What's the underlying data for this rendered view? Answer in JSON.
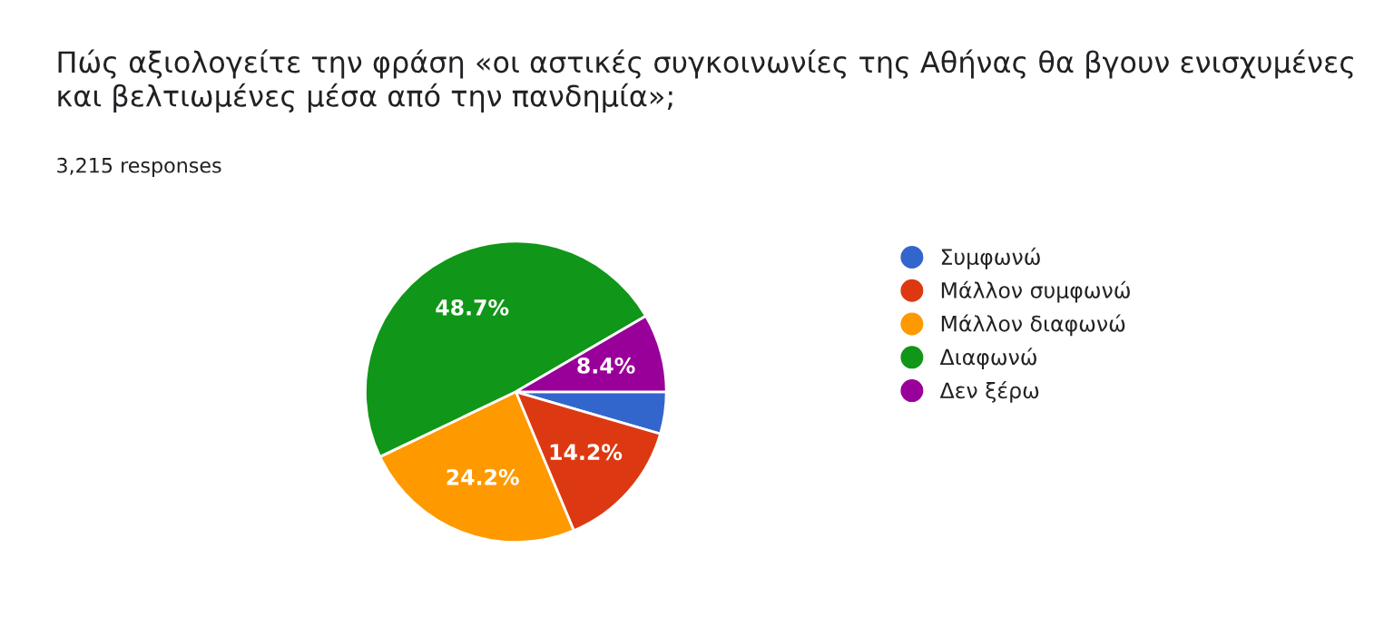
{
  "chart_data": {
    "type": "pie",
    "title": "Πώς αξιολογείτε την φράση «οι αστικές συγκοινωνίες της Αθήνας θα βγουν ενισχυμένες και βελτιωμένες μέσα από την πανδημία»;",
    "subtitle": "3,215 responses",
    "categories": [
      "Συμφωνώ",
      "Μάλλον συμφωνώ",
      "Μάλλον διαφωνώ",
      "Διαφωνώ",
      "Δεν ξέρω"
    ],
    "values": [
      4.5,
      14.2,
      24.2,
      48.7,
      8.4
    ],
    "value_labels": [
      null,
      "14.2%",
      "24.2%",
      "48.7%",
      "8.4%"
    ],
    "colors": [
      "#3366cc",
      "#dc3912",
      "#ff9900",
      "#109618",
      "#990099"
    ],
    "legend": "right"
  }
}
